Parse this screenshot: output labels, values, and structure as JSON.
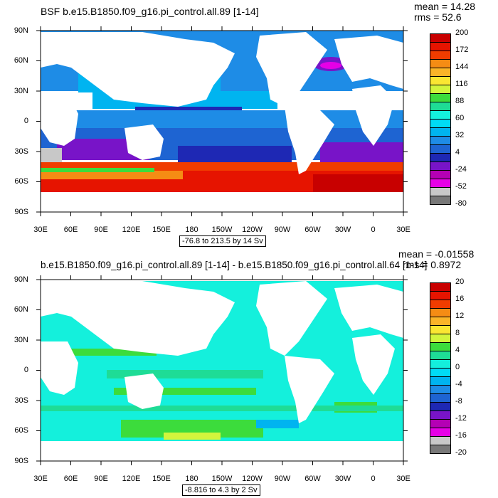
{
  "top_panel": {
    "title": "BSF b.e15.B1850.f09_g16.pi_control.all.89 [1-14]",
    "stats_mean": "mean = 14.28",
    "stats_rms": "rms = 52.6",
    "range_text": "-76.8 to 213.5 by 14 Sv",
    "lat_labels": [
      "90N",
      "60N",
      "30N",
      "0",
      "30S",
      "60S",
      "90S"
    ],
    "lon_labels": [
      "30E",
      "60E",
      "90E",
      "120E",
      "150E",
      "180",
      "150W",
      "120W",
      "90W",
      "60W",
      "30W",
      "0",
      "30E"
    ],
    "colorbar_labels": [
      "200",
      "172",
      "144",
      "116",
      "88",
      "60",
      "32",
      "4",
      "-24",
      "-52",
      "-80"
    ],
    "colorbar_colors": [
      "#c80000",
      "#e61400",
      "#f03c00",
      "#f58c14",
      "#fab428",
      "#fae632",
      "#d2f53c",
      "#3cdc3c",
      "#1edc96",
      "#14f0dc",
      "#00dcf5",
      "#00b4f0",
      "#1e8ce6",
      "#1e64d2",
      "#1e28b4",
      "#7814c8",
      "#b400b4",
      "#e600e6",
      "#c8c8c8",
      "#787878"
    ]
  },
  "bottom_panel": {
    "title": "b.e15.B1850.f09_g16.pi_control.all.89 [1-14] - b.e15.B1850.f09_g16.pi_control.all.64 [1-14]",
    "stats_mean": "mean = -0.01558",
    "stats_rms": "rms = 0.8972",
    "range_text": "-8.816 to 4.3 by 2 Sv",
    "lat_labels": [
      "90N",
      "60N",
      "30N",
      "0",
      "30S",
      "60S",
      "90S"
    ],
    "lon_labels": [
      "30E",
      "60E",
      "90E",
      "120E",
      "150E",
      "180",
      "150W",
      "120W",
      "90W",
      "60W",
      "30W",
      "0",
      "30E"
    ],
    "colorbar_labels": [
      "20",
      "16",
      "12",
      "8",
      "4",
      "0",
      "-4",
      "-8",
      "-12",
      "-16",
      "-20"
    ],
    "colorbar_colors": [
      "#c80000",
      "#e61400",
      "#f03c00",
      "#f58c14",
      "#fab428",
      "#fae632",
      "#d2f53c",
      "#3cdc3c",
      "#1edc96",
      "#14f0dc",
      "#00dcf5",
      "#00b4f0",
      "#1e8ce6",
      "#1e64d2",
      "#1e28b4",
      "#7814c8",
      "#b400b4",
      "#e600e6",
      "#c8c8c8",
      "#787878"
    ]
  }
}
